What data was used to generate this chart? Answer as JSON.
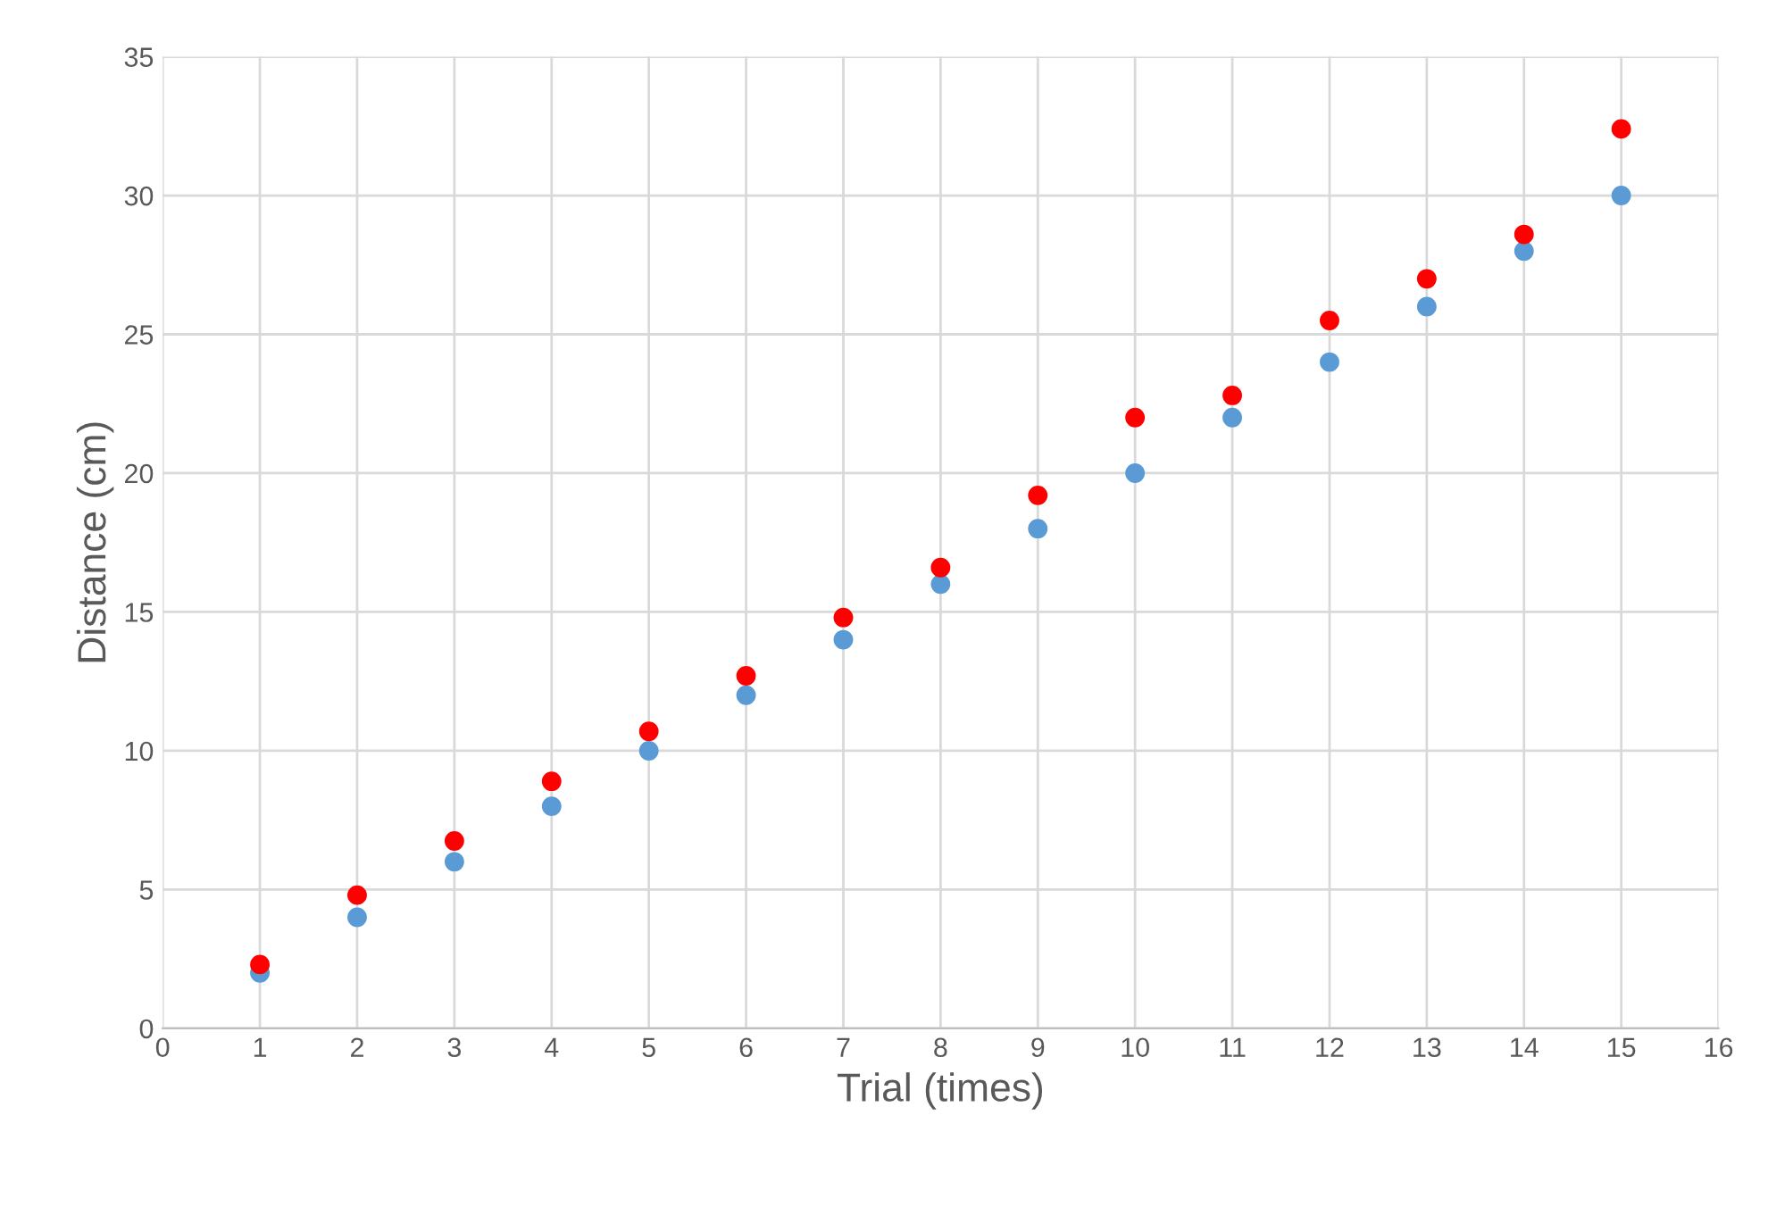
{
  "chart_data": {
    "type": "scatter",
    "xlabel": "Trial (times)",
    "ylabel": "Distance (cm)",
    "x": [
      1,
      2,
      3,
      4,
      5,
      6,
      7,
      8,
      9,
      10,
      11,
      12,
      13,
      14,
      15
    ],
    "series": [
      {
        "color": "#5b9bd5",
        "values": [
          2,
          4,
          6,
          8,
          10,
          12,
          14,
          16,
          18,
          20,
          22,
          24,
          26,
          28,
          30
        ]
      },
      {
        "color": "#ff0000",
        "values": [
          2.3,
          4.8,
          6.75,
          8.9,
          10.7,
          12.7,
          14.8,
          16.6,
          19.2,
          22.0,
          22.8,
          25.5,
          27.0,
          28.6,
          32.4
        ]
      }
    ],
    "xlim": [
      0,
      16
    ],
    "xticks": [
      0,
      1,
      2,
      3,
      4,
      5,
      6,
      7,
      8,
      9,
      10,
      11,
      12,
      13,
      14,
      15,
      16
    ],
    "ylim": [
      0,
      35
    ],
    "yticks": [
      0,
      5,
      10,
      15,
      20,
      25,
      30,
      35
    ],
    "grid": true,
    "marker": "circle",
    "legend": false
  }
}
